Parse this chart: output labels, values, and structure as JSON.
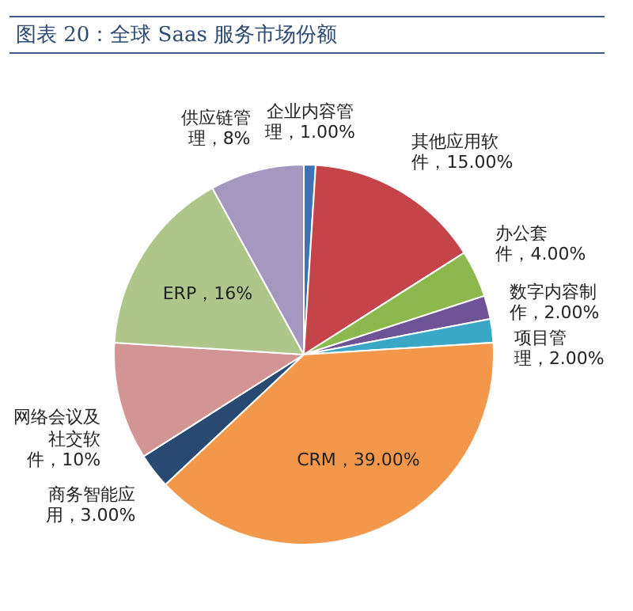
{
  "chart_data": {
    "type": "pie",
    "title": "图表 20：全球 Saas 服务市场份额",
    "categories": [
      "企业内容管理",
      "其他应用软件",
      "办公套件",
      "数字内容制作",
      "项目管理",
      "CRM",
      "商务智能应用",
      "网络会议及社交软件",
      "ERP",
      "供应链管理"
    ],
    "values": [
      1,
      15,
      4,
      2,
      2,
      39,
      3,
      10,
      16,
      8
    ],
    "value_labels": [
      "1.00%",
      "15.00%",
      "4.00%",
      "2.00%",
      "2.00%",
      "39.00%",
      "3.00%",
      "10%",
      "16%",
      "8%"
    ],
    "colors": [
      "#3f73b4",
      "#c4444a",
      "#8db84e",
      "#6e5497",
      "#3aa7c6",
      "#f3984a",
      "#284a72",
      "#d39494",
      "#aec68a",
      "#a497c0"
    ]
  }
}
